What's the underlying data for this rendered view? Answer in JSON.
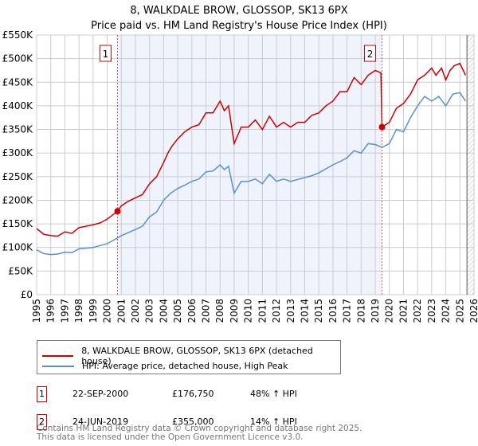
{
  "chart_data": {
    "type": "line",
    "title": "8, WALKDALE BROW, GLOSSOP, SK13 6PX",
    "subtitle": "Price paid vs. HM Land Registry's House Price Index (HPI)",
    "xlim": [
      1995,
      2026
    ],
    "ylim": [
      0,
      550000
    ],
    "yticks": [
      0,
      50000,
      100000,
      150000,
      200000,
      250000,
      300000,
      350000,
      400000,
      450000,
      500000,
      550000
    ],
    "ytick_labels": [
      "£0",
      "£50K",
      "£100K",
      "£150K",
      "£200K",
      "£250K",
      "£300K",
      "£350K",
      "£400K",
      "£450K",
      "£500K",
      "£550K"
    ],
    "xticks": [
      "1995",
      "1996",
      "1997",
      "1998",
      "1999",
      "2000",
      "2001",
      "2002",
      "2003",
      "2004",
      "2005",
      "2006",
      "2007",
      "2008",
      "2009",
      "2010",
      "2011",
      "2012",
      "2013",
      "2014",
      "2015",
      "2016",
      "2017",
      "2018",
      "2019",
      "2020",
      "2021",
      "2022",
      "2023",
      "2024",
      "2025",
      "2026"
    ],
    "grid": true,
    "shaded_range": [
      2000.73,
      2019.48
    ],
    "hatched_from": 2025.5,
    "series": [
      {
        "name": "8, WALKDALE BROW, GLOSSOP, SK13 6PX (detached house)",
        "color": "#cc0000",
        "x": [
          1995,
          1995.5,
          1996,
          1996.5,
          1997,
          1997.5,
          1998,
          1998.5,
          1999,
          1999.5,
          2000,
          2000.73,
          2001,
          2001.5,
          2002,
          2002.5,
          2003,
          2003.5,
          2004,
          2004.3,
          2004.6,
          2005,
          2005.5,
          2006,
          2006.5,
          2007,
          2007.5,
          2008,
          2008.3,
          2008.6,
          2009,
          2009.5,
          2010,
          2010.5,
          2011,
          2011.5,
          2012,
          2012.5,
          2013,
          2013.5,
          2014,
          2014.5,
          2015,
          2015.5,
          2016,
          2016.5,
          2017,
          2017.5,
          2018,
          2018.5,
          2019,
          2019.4,
          2019.48,
          2020,
          2020.5,
          2021,
          2021.5,
          2022,
          2022.5,
          2023,
          2023.3,
          2023.7,
          2024,
          2024.3,
          2024.6,
          2025,
          2025.4
        ],
        "y": [
          140000,
          128000,
          125000,
          124000,
          133000,
          130000,
          142000,
          145000,
          148000,
          152000,
          160000,
          176750,
          188000,
          198000,
          205000,
          212000,
          235000,
          250000,
          280000,
          300000,
          315000,
          330000,
          345000,
          355000,
          360000,
          385000,
          385000,
          410000,
          390000,
          400000,
          320000,
          355000,
          355000,
          370000,
          350000,
          378000,
          355000,
          365000,
          355000,
          365000,
          365000,
          380000,
          385000,
          400000,
          410000,
          430000,
          430000,
          460000,
          445000,
          465000,
          475000,
          470000,
          355000,
          365000,
          395000,
          405000,
          425000,
          455000,
          465000,
          480000,
          465000,
          480000,
          455000,
          475000,
          485000,
          490000,
          465000
        ]
      },
      {
        "name": "HPI: Average price, detached house, High Peak",
        "color": "#5b8fd4",
        "x": [
          1995,
          1995.5,
          1996,
          1996.5,
          1997,
          1997.5,
          1998,
          1999,
          2000,
          2000.73,
          2001,
          2002,
          2002.5,
          2003,
          2003.5,
          2004,
          2004.5,
          2005,
          2005.5,
          2006,
          2006.5,
          2007,
          2007.5,
          2008,
          2008.3,
          2008.6,
          2009,
          2009.5,
          2010,
          2010.5,
          2011,
          2011.5,
          2012,
          2012.5,
          2013,
          2014,
          2014.5,
          2015,
          2016,
          2016.5,
          2017,
          2017.5,
          2018,
          2018.5,
          2019,
          2019.48,
          2020,
          2020.5,
          2021,
          2021.5,
          2022,
          2022.5,
          2023,
          2023.5,
          2024,
          2024.5,
          2025,
          2025.4
        ],
        "y": [
          95000,
          87000,
          85000,
          86000,
          90000,
          89000,
          97000,
          100000,
          108000,
          120000,
          125000,
          138000,
          145000,
          165000,
          175000,
          200000,
          215000,
          225000,
          232000,
          240000,
          245000,
          260000,
          262000,
          275000,
          265000,
          272000,
          215000,
          240000,
          240000,
          245000,
          235000,
          255000,
          240000,
          245000,
          240000,
          248000,
          252000,
          258000,
          275000,
          282000,
          290000,
          305000,
          300000,
          320000,
          318000,
          312000,
          320000,
          350000,
          345000,
          375000,
          400000,
          420000,
          410000,
          420000,
          400000,
          425000,
          428000,
          410000
        ]
      }
    ],
    "sales": [
      {
        "label": "1",
        "x": 2000.73,
        "y": 176750,
        "date": "22-SEP-2000",
        "price": "£176,750",
        "hpi": "48% ↑ HPI"
      },
      {
        "label": "2",
        "x": 2019.48,
        "y": 355000,
        "date": "24-JUN-2019",
        "price": "£355,000",
        "hpi": "14% ↑ HPI"
      }
    ]
  },
  "footer": {
    "line1": "Contains HM Land Registry data © Crown copyright and database right 2025.",
    "line2": "This data is licensed under the Open Government Licence v3.0."
  }
}
